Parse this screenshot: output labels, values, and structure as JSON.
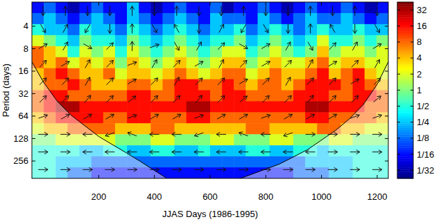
{
  "chart_data": {
    "type": "heatmap",
    "xlabel": "JJAS Days (1986-1995)",
    "ylabel": "Period (days)",
    "log": "y",
    "xlim": [
      -40,
      1240
    ],
    "xticks": [
      200,
      400,
      600,
      800,
      1000,
      1200
    ],
    "ylim": [
      1.9,
      437
    ],
    "yticks": [
      4,
      8,
      16,
      32,
      64,
      128,
      256
    ],
    "colorbar": {
      "range": [
        0.022,
        45
      ],
      "ticks": [
        32,
        16,
        8,
        4,
        2,
        1,
        {
          "value": 0.5,
          "label": "1/2"
        },
        {
          "value": 0.25,
          "label": "1/4"
        },
        {
          "value": 0.125,
          "label": "1/8"
        },
        {
          "value": 0.0625,
          "label": "1/16"
        },
        {
          "value": 0.03125,
          "label": "1/32"
        }
      ]
    },
    "cells": [
      [
        0.0625,
        0.125,
        0.0625,
        0.03125,
        0.0625,
        0.125,
        0.0625,
        0.0625,
        0.25,
        0.0625,
        0.03125,
        0.0625,
        0.125,
        0.0625,
        0.0625,
        0.125,
        0.03125,
        0.0625,
        0.0625,
        0.125,
        0.0625,
        0.03125,
        0.0625,
        0.125,
        0.0625,
        0.0625,
        0.125,
        0.0625,
        0.03125,
        0.0625
      ],
      [
        0.125,
        0.25,
        0.125,
        0.0625,
        0.125,
        0.25,
        0.125,
        0.0625,
        0.25,
        0.125,
        0.0625,
        0.125,
        0.25,
        0.125,
        0.0625,
        0.25,
        0.125,
        0.125,
        0.0625,
        0.25,
        0.125,
        0.0625,
        0.125,
        0.25,
        0.125,
        0.125,
        0.25,
        0.125,
        0.0625,
        0.125
      ],
      [
        0.5,
        0.25,
        0.25,
        0.125,
        0.5,
        0.25,
        0.25,
        0.125,
        0.5,
        0.25,
        0.125,
        0.25,
        0.5,
        0.25,
        0.125,
        0.25,
        0.25,
        0.5,
        0.125,
        0.25,
        0.5,
        0.25,
        0.125,
        0.25,
        0.5,
        0.25,
        0.25,
        0.5,
        0.25,
        0.25
      ],
      [
        2,
        1,
        0.5,
        0.25,
        1,
        0.5,
        0.5,
        0.25,
        1,
        0.5,
        0.25,
        0.5,
        1,
        0.5,
        0.25,
        0.5,
        0.5,
        1,
        0.25,
        0.5,
        1,
        0.5,
        0.25,
        0.5,
        2,
        0.5,
        0.5,
        1,
        0.5,
        1
      ],
      [
        8,
        4,
        2,
        0.5,
        2,
        1,
        2,
        0.5,
        2,
        1,
        0.5,
        1,
        2,
        1,
        0.5,
        1,
        2,
        2,
        0.5,
        1,
        2,
        1,
        0.5,
        1,
        4,
        1,
        2,
        2,
        1,
        2
      ],
      [
        8,
        4,
        8,
        2,
        4,
        2,
        4,
        1,
        4,
        2,
        1,
        2,
        4,
        2,
        1,
        2,
        4,
        4,
        1,
        2,
        4,
        2,
        2,
        4,
        8,
        2,
        4,
        4,
        2,
        2
      ],
      [
        4,
        8,
        16,
        8,
        4,
        4,
        8,
        2,
        4,
        4,
        2,
        4,
        8,
        4,
        2,
        4,
        8,
        8,
        2,
        4,
        8,
        4,
        4,
        8,
        16,
        4,
        8,
        16,
        4,
        2
      ],
      [
        4,
        8,
        8,
        16,
        8,
        4,
        4,
        4,
        8,
        8,
        4,
        8,
        16,
        16,
        8,
        8,
        16,
        8,
        4,
        8,
        8,
        4,
        8,
        16,
        16,
        16,
        8,
        16,
        8,
        4
      ],
      [
        8,
        16,
        16,
        8,
        8,
        8,
        8,
        8,
        16,
        16,
        8,
        8,
        16,
        16,
        16,
        8,
        16,
        16,
        8,
        8,
        8,
        8,
        16,
        16,
        16,
        8,
        8,
        16,
        16,
        8
      ],
      [
        8,
        16,
        32,
        32,
        16,
        16,
        16,
        16,
        16,
        16,
        16,
        16,
        16,
        32,
        32,
        16,
        16,
        16,
        16,
        16,
        16,
        16,
        16,
        32,
        32,
        16,
        16,
        16,
        8,
        8
      ],
      [
        4,
        8,
        16,
        16,
        16,
        16,
        8,
        8,
        16,
        16,
        8,
        8,
        8,
        16,
        16,
        8,
        8,
        8,
        8,
        8,
        8,
        8,
        8,
        16,
        16,
        8,
        8,
        8,
        8,
        4
      ],
      [
        2,
        4,
        4,
        8,
        8,
        8,
        8,
        4,
        4,
        4,
        8,
        8,
        4,
        4,
        4,
        4,
        4,
        4,
        8,
        8,
        4,
        4,
        4,
        4,
        8,
        8,
        4,
        4,
        2,
        2
      ],
      [
        1,
        1,
        2,
        2,
        2,
        2,
        2,
        1,
        1,
        1,
        2,
        2,
        1,
        1,
        1,
        2,
        2,
        1,
        1,
        1,
        2,
        2,
        1,
        1,
        1,
        2,
        2,
        1,
        1,
        1
      ],
      [
        0.5,
        0.5,
        0.5,
        0.5,
        0.25,
        0.25,
        0.5,
        0.5,
        0.25,
        0.25,
        0.5,
        0.5,
        0.25,
        0.25,
        0.5,
        0.25,
        0.25,
        0.25,
        0.5,
        0.5,
        0.25,
        0.25,
        0.5,
        0.5,
        0.25,
        0.5,
        0.5,
        0.5,
        0.5,
        0.5
      ],
      [
        0.5,
        0.5,
        0.25,
        0.25,
        0.25,
        0.125,
        0.125,
        0.125,
        0.125,
        0.125,
        0.125,
        0.125,
        0.125,
        0.125,
        0.125,
        0.125,
        0.125,
        0.125,
        0.125,
        0.125,
        0.125,
        0.125,
        0.125,
        0.25,
        0.25,
        0.25,
        0.25,
        0.5,
        0.5,
        0.5
      ],
      [
        0.5,
        0.5,
        0.25,
        0.125,
        0.125,
        0.0625,
        0.0625,
        0.0625,
        0.0625,
        0.0625,
        0.0625,
        0.0625,
        0.0625,
        0.0625,
        0.0625,
        0.0625,
        0.0625,
        0.0625,
        0.0625,
        0.0625,
        0.0625,
        0.0625,
        0.125,
        0.125,
        0.125,
        0.25,
        0.25,
        0.5,
        0.5,
        0.5
      ]
    ],
    "phase": [
      [
        270,
        90,
        270,
        270,
        90,
        270,
        90,
        270,
        270,
        90,
        270,
        270,
        90,
        270,
        90,
        270
      ],
      [
        300,
        60,
        240,
        270,
        90,
        300,
        120,
        270,
        60,
        240,
        300,
        270,
        90,
        120,
        270,
        300
      ],
      [
        30,
        60,
        330,
        45,
        90,
        20,
        300,
        60,
        45,
        330,
        30,
        60,
        300,
        45,
        60,
        30
      ],
      [
        45,
        30,
        60,
        45,
        20,
        60,
        45,
        30,
        60,
        45,
        30,
        45,
        60,
        30,
        45,
        60
      ],
      [
        45,
        45,
        60,
        45,
        30,
        45,
        60,
        45,
        45,
        30,
        45,
        60,
        45,
        45,
        30,
        45
      ],
      [
        45,
        45,
        50,
        45,
        40,
        45,
        45,
        50,
        45,
        40,
        45,
        45,
        50,
        45,
        45,
        40
      ],
      [
        20,
        30,
        30,
        30,
        20,
        30,
        30,
        20,
        30,
        30,
        20,
        30,
        30,
        30,
        20,
        20
      ],
      [
        0,
        0,
        180,
        200,
        160,
        180,
        180,
        200,
        180,
        160,
        180,
        200,
        0,
        0,
        0,
        0
      ],
      [
        0,
        0,
        180,
        180,
        180,
        180,
        180,
        180,
        180,
        180,
        180,
        180,
        180,
        0,
        0,
        0
      ],
      [
        0,
        0,
        0,
        0,
        0,
        0,
        0,
        0,
        0,
        0,
        0,
        0,
        0,
        0,
        0,
        0
      ]
    ],
    "coi": {
      "x": [
        -40,
        0,
        50,
        100,
        200,
        300,
        350,
        450,
        700,
        850,
        950,
        1050,
        1100,
        1150,
        1200,
        1240
      ],
      "period": [
        12,
        22,
        40,
        62,
        120,
        200,
        260,
        450,
        450,
        280,
        180,
        100,
        70,
        45,
        24,
        12
      ]
    }
  }
}
